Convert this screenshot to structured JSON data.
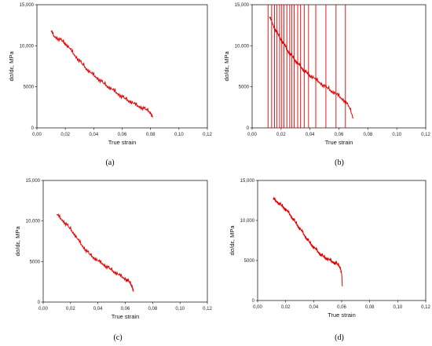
{
  "chart_data": [
    {
      "type": "line",
      "panel_label": "(a)",
      "xlabel": "True strain",
      "ylabel": "dσ/dε, MPa",
      "xlim": [
        0,
        0.12
      ],
      "ylim": [
        0,
        15000
      ],
      "x_ticks": [
        "0,00",
        "0,02",
        "0,04",
        "0,06",
        "0,08",
        "0,10",
        "0,12"
      ],
      "y_ticks": [
        "0",
        "5000",
        "10,000",
        "15,000"
      ],
      "series": [
        {
          "color": "#e00000",
          "x": [
            0.01,
            0.012,
            0.015,
            0.018,
            0.02,
            0.023,
            0.026,
            0.029,
            0.032,
            0.035,
            0.038,
            0.041,
            0.044,
            0.047,
            0.05,
            0.053,
            0.056,
            0.059,
            0.062,
            0.065,
            0.068,
            0.071,
            0.074,
            0.077,
            0.08,
            0.0815
          ],
          "y": [
            11800,
            11200,
            10900,
            10600,
            10300,
            9700,
            9000,
            8400,
            7800,
            7200,
            6700,
            6300,
            5900,
            5450,
            5050,
            4700,
            4300,
            3950,
            3600,
            3300,
            3000,
            2700,
            2500,
            2250,
            1900,
            1300
          ]
        }
      ]
    },
    {
      "type": "line",
      "panel_label": "(b)",
      "xlabel": "True strain",
      "ylabel": "dσ/dε, MPa",
      "xlim": [
        0,
        0.12
      ],
      "ylim": [
        0,
        15000
      ],
      "x_ticks": [
        "0,00",
        "0,02",
        "0,04",
        "0,06",
        "0,08",
        "0,10",
        "0,12"
      ],
      "y_ticks": [
        "0",
        "5000",
        "10,000",
        "15,000"
      ],
      "series": [
        {
          "color": "#e00000",
          "x": [
            0.012,
            0.014,
            0.016,
            0.018,
            0.02,
            0.022,
            0.024,
            0.026,
            0.028,
            0.03,
            0.032,
            0.034,
            0.036,
            0.038,
            0.04,
            0.043,
            0.046,
            0.049,
            0.052,
            0.055,
            0.058,
            0.061,
            0.064,
            0.067,
            0.07
          ],
          "y": [
            13500,
            12800,
            12000,
            11400,
            10800,
            10200,
            9600,
            9100,
            8700,
            8200,
            7800,
            7400,
            7000,
            6700,
            6400,
            6050,
            5650,
            5250,
            4900,
            4500,
            4150,
            3750,
            3300,
            2600,
            1200
          ]
        }
      ],
      "spikes_x": [
        0.011,
        0.0135,
        0.0155,
        0.017,
        0.019,
        0.0205,
        0.022,
        0.024,
        0.026,
        0.0275,
        0.029,
        0.0315,
        0.0335,
        0.036,
        0.039,
        0.044,
        0.051,
        0.058,
        0.0645
      ]
    },
    {
      "type": "line",
      "panel_label": "(c)",
      "xlabel": "True strain",
      "ylabel": "dσ/dε, MPa",
      "xlim": [
        0,
        0.12
      ],
      "ylim": [
        0,
        15000
      ],
      "x_ticks": [
        "0,00",
        "0,02",
        "0,04",
        "0,06",
        "0,08",
        "0,10",
        "0,12"
      ],
      "y_ticks": [
        "0",
        "5000",
        "10,000",
        "15,000"
      ],
      "series": [
        {
          "color": "#e00000",
          "x": [
            0.01,
            0.013,
            0.016,
            0.019,
            0.022,
            0.025,
            0.028,
            0.031,
            0.034,
            0.037,
            0.04,
            0.043,
            0.046,
            0.049,
            0.052,
            0.055,
            0.058,
            0.061,
            0.063,
            0.065,
            0.066
          ],
          "y": [
            10800,
            10300,
            9800,
            9200,
            8600,
            7800,
            7100,
            6500,
            5900,
            5500,
            5100,
            4800,
            4450,
            4100,
            3750,
            3400,
            3100,
            2800,
            2500,
            2000,
            1300
          ]
        }
      ]
    },
    {
      "type": "line",
      "panel_label": "(d)",
      "xlabel": "True strain",
      "ylabel": "dσ/dε, MPa",
      "xlim": [
        0,
        0.12
      ],
      "ylim": [
        0,
        15000
      ],
      "x_ticks": [
        "0,00",
        "0,02",
        "0,04",
        "0,06",
        "0,08",
        "0,10",
        "0,12"
      ],
      "y_ticks": [
        "0",
        "5000",
        "10,000",
        "15,000"
      ],
      "series": [
        {
          "color": "#e00000",
          "x": [
            0.011,
            0.013,
            0.015,
            0.017,
            0.019,
            0.021,
            0.023,
            0.025,
            0.027,
            0.029,
            0.031,
            0.033,
            0.035,
            0.037,
            0.039,
            0.041,
            0.043,
            0.045,
            0.047,
            0.049,
            0.051,
            0.053,
            0.055,
            0.057,
            0.059,
            0.06,
            0.0605
          ],
          "y": [
            12700,
            12500,
            12200,
            11900,
            11600,
            11200,
            10800,
            10300,
            9800,
            9300,
            8800,
            8300,
            7800,
            7300,
            6900,
            6500,
            6150,
            5800,
            5500,
            5300,
            5100,
            4900,
            4750,
            4550,
            4200,
            3300,
            1800
          ]
        }
      ]
    }
  ]
}
